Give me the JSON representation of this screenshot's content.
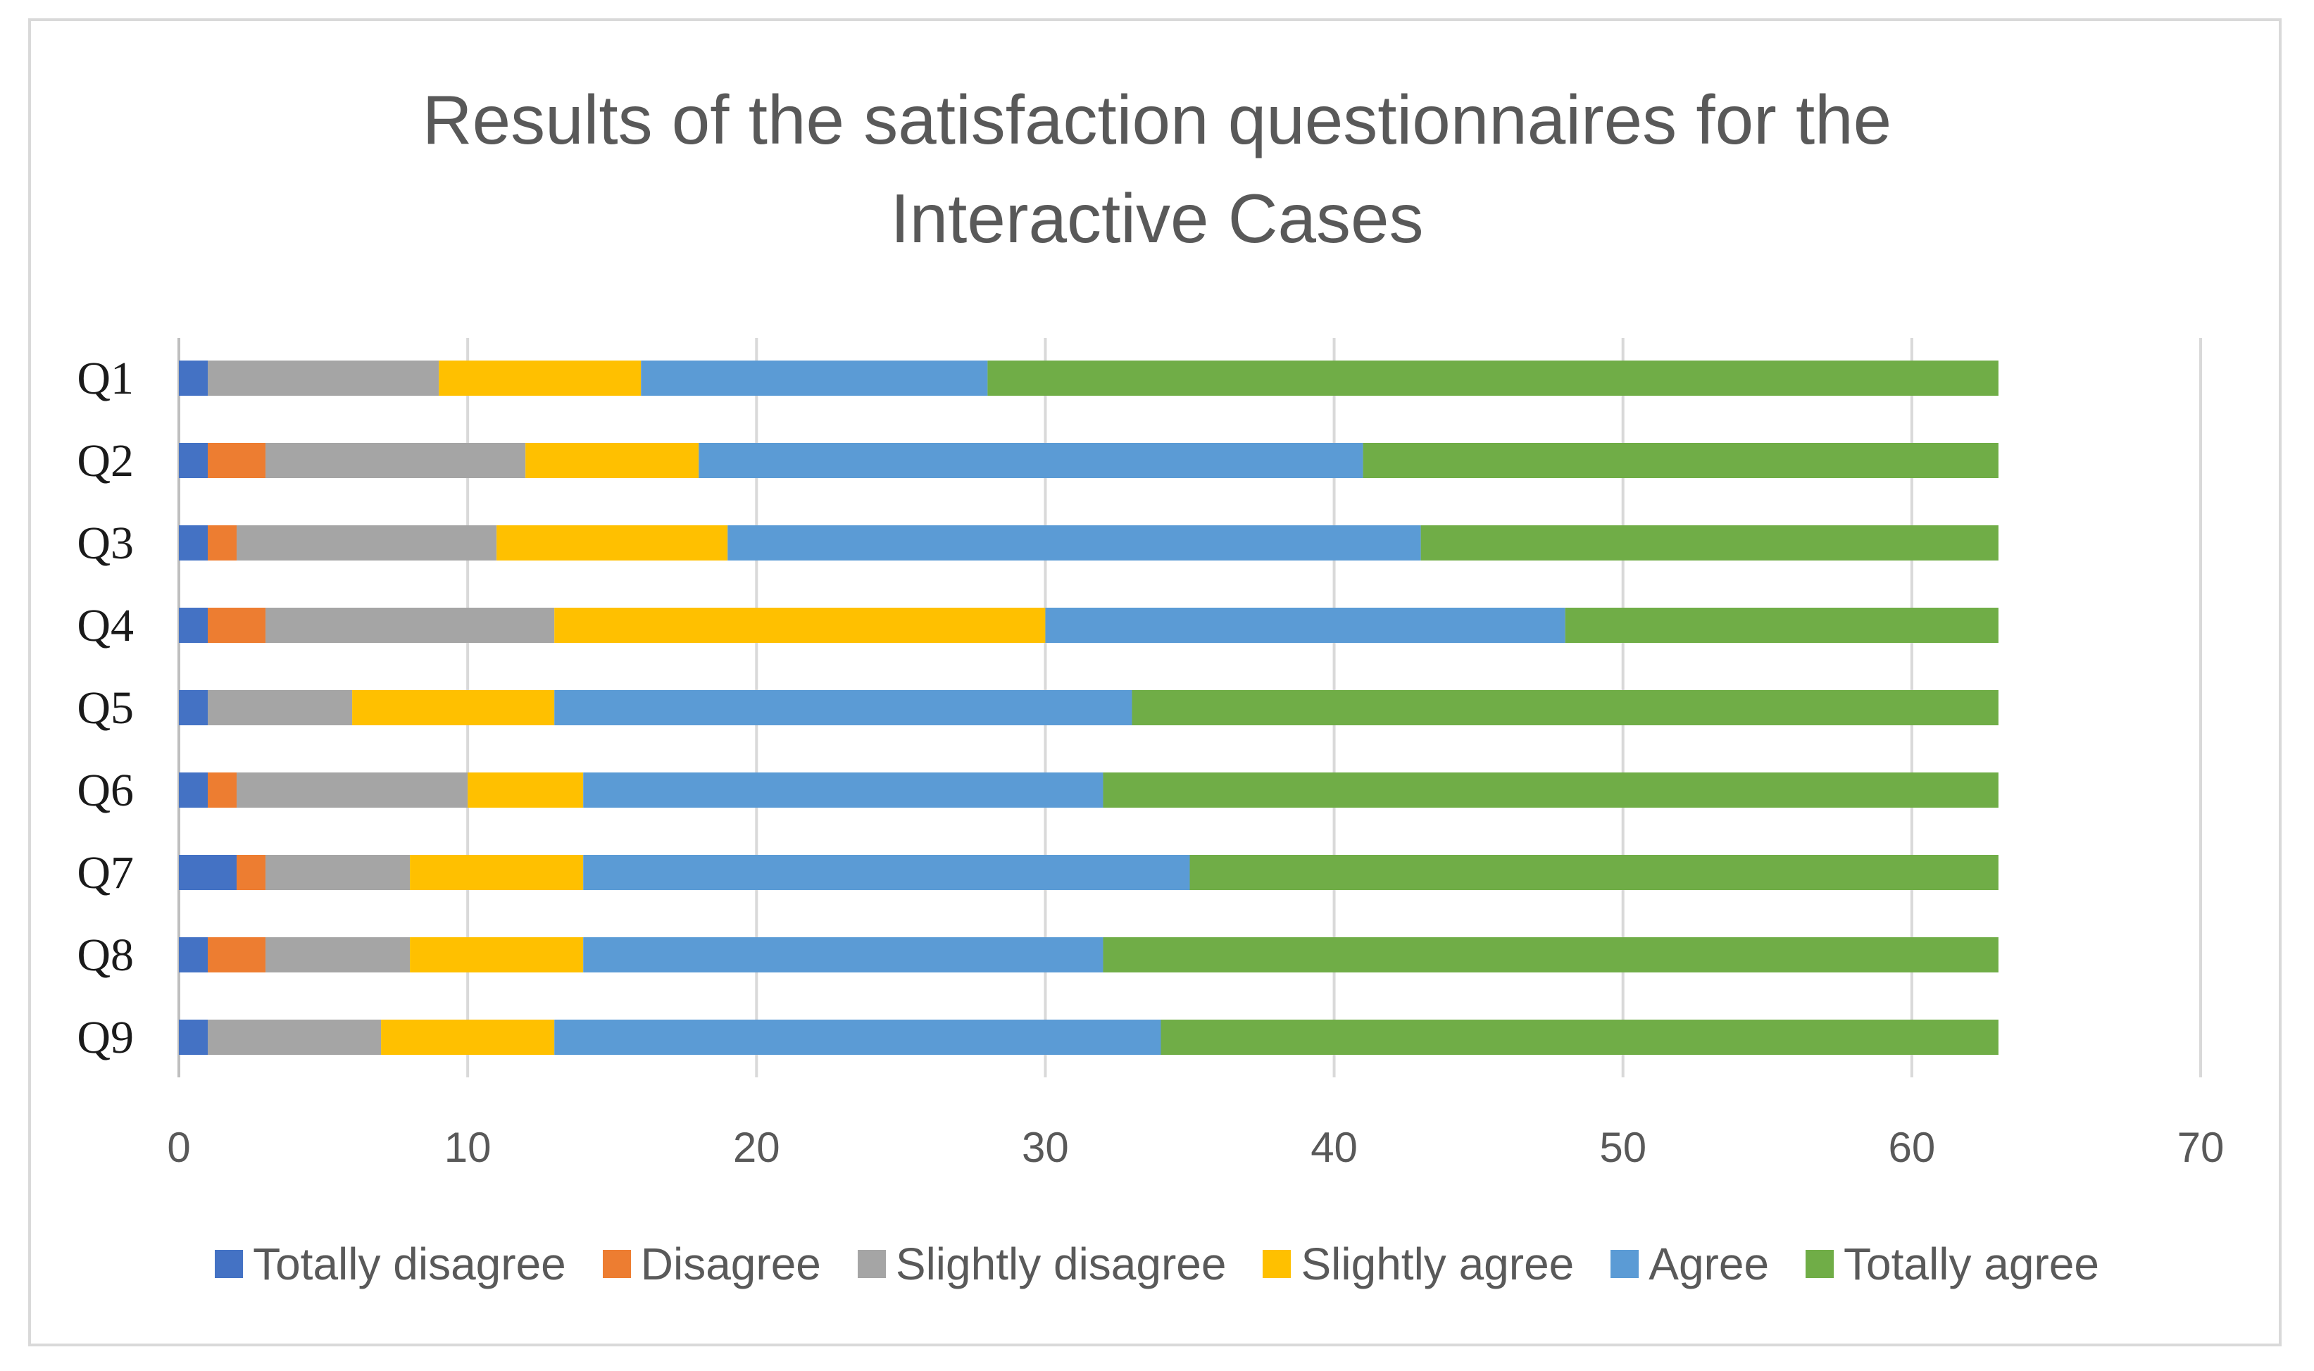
{
  "chart_data": {
    "type": "bar",
    "orientation": "horizontal",
    "stacked": true,
    "title": "Results of the satisfaction questionnaires for the Interactive Cases",
    "title_lines": [
      "Results of the satisfaction questionnaires for the",
      "Interactive Cases"
    ],
    "categories": [
      "Q1",
      "Q2",
      "Q3",
      "Q4",
      "Q5",
      "Q6",
      "Q7",
      "Q8",
      "Q9"
    ],
    "x_ticks": [
      "0",
      "10",
      "20",
      "30",
      "40",
      "50",
      "60",
      "70"
    ],
    "xlim": [
      0,
      70
    ],
    "grid": "vertical",
    "legend_position": "bottom",
    "series": [
      {
        "name": "Totally disagree",
        "color": "#4472c4",
        "values": [
          1,
          1,
          1,
          1,
          1,
          1,
          2,
          1,
          1
        ]
      },
      {
        "name": "Disagree",
        "color": "#ed7d31",
        "values": [
          0,
          2,
          1,
          2,
          0,
          1,
          1,
          2,
          0
        ]
      },
      {
        "name": "Slightly disagree",
        "color": "#a5a5a5",
        "values": [
          8,
          9,
          9,
          10,
          5,
          8,
          5,
          5,
          6
        ]
      },
      {
        "name": "Slightly agree",
        "color": "#ffc000",
        "values": [
          7,
          6,
          8,
          17,
          7,
          4,
          6,
          6,
          6
        ]
      },
      {
        "name": "Agree",
        "color": "#5b9bd5",
        "values": [
          12,
          23,
          24,
          18,
          20,
          18,
          21,
          18,
          21
        ]
      },
      {
        "name": "Totally agree",
        "color": "#70ad47",
        "values": [
          35,
          22,
          20,
          15,
          30,
          31,
          28,
          31,
          29
        ]
      }
    ]
  }
}
